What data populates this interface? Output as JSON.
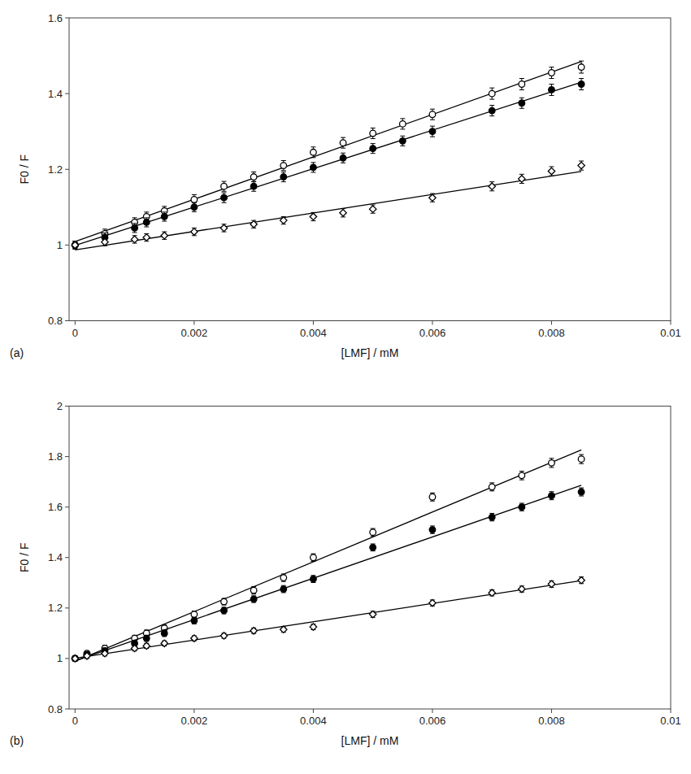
{
  "chart_data": [
    {
      "type": "scatter",
      "x_label": "[LMF] / mM",
      "y_label": "F0 / F",
      "annotations": [
        "(a)"
      ],
      "xlim": [
        -0.0001,
        0.01
      ],
      "xticks": [
        0,
        0.002,
        0.004,
        0.006,
        0.008,
        0.01
      ],
      "ylim": [
        0.8,
        1.6
      ],
      "yticks": [
        0.8,
        1.0,
        1.2,
        1.4,
        1.6
      ],
      "grid": false,
      "series": [
        {
          "type": "line",
          "color": "#000000",
          "x": [
            0,
            0.0085
          ],
          "values": [
            1.00889,
            1.48463
          ]
        },
        {
          "type": "scatter",
          "marker": "open-circle",
          "color": "#000000",
          "x": [
            0,
            0.0005,
            0.001,
            0.0012,
            0.0015,
            0.002,
            0.0025,
            0.003,
            0.0035,
            0.004,
            0.0045,
            0.005,
            0.0055,
            0.006,
            0.007,
            0.0075,
            0.008,
            0.0085
          ],
          "values": [
            1.0,
            1.03,
            1.06,
            1.075,
            1.09,
            1.12,
            1.155,
            1.18,
            1.21,
            1.245,
            1.27,
            1.295,
            1.32,
            1.345,
            1.4,
            1.425,
            1.455,
            1.47
          ],
          "errors": [
            0.01,
            0.012,
            0.012,
            0.012,
            0.012,
            0.013,
            0.013,
            0.013,
            0.013,
            0.014,
            0.014,
            0.014,
            0.014,
            0.014,
            0.015,
            0.015,
            0.015,
            0.016
          ]
        },
        {
          "type": "line",
          "color": "#000000",
          "x": [
            0,
            0.0085
          ],
          "values": [
            0.99883,
            1.42993
          ]
        },
        {
          "type": "scatter",
          "marker": "filled-circle",
          "color": "#000000",
          "x": [
            0,
            0.0005,
            0.001,
            0.0012,
            0.0015,
            0.002,
            0.0025,
            0.003,
            0.0035,
            0.004,
            0.0045,
            0.005,
            0.0055,
            0.006,
            0.007,
            0.0075,
            0.008,
            0.0085
          ],
          "values": [
            1.0,
            1.02,
            1.045,
            1.06,
            1.075,
            1.1,
            1.125,
            1.155,
            1.18,
            1.205,
            1.23,
            1.255,
            1.275,
            1.3,
            1.355,
            1.375,
            1.41,
            1.425
          ],
          "errors": [
            0.01,
            0.012,
            0.012,
            0.012,
            0.012,
            0.012,
            0.013,
            0.013,
            0.013,
            0.013,
            0.013,
            0.013,
            0.013,
            0.014,
            0.014,
            0.014,
            0.015,
            0.015
          ]
        },
        {
          "type": "line",
          "color": "#000000",
          "x": [
            0,
            0.0085
          ],
          "values": [
            0.98701,
            1.19451
          ]
        },
        {
          "type": "scatter",
          "marker": "open-diamond",
          "color": "#000000",
          "x": [
            0,
            0.0005,
            0.001,
            0.0012,
            0.0015,
            0.002,
            0.0025,
            0.003,
            0.0035,
            0.004,
            0.0045,
            0.005,
            0.006,
            0.007,
            0.0075,
            0.008,
            0.0085
          ],
          "values": [
            1.0,
            1.008,
            1.015,
            1.02,
            1.025,
            1.035,
            1.045,
            1.055,
            1.065,
            1.075,
            1.085,
            1.095,
            1.125,
            1.155,
            1.175,
            1.195,
            1.21
          ],
          "errors": [
            0.01,
            0.01,
            0.01,
            0.01,
            0.01,
            0.01,
            0.01,
            0.01,
            0.01,
            0.011,
            0.011,
            0.011,
            0.011,
            0.012,
            0.012,
            0.012,
            0.012
          ]
        }
      ]
    },
    {
      "type": "scatter",
      "x_label": "[LMF] / mM",
      "y_label": "F0 / F",
      "annotations": [
        "(b)"
      ],
      "xlim": [
        -0.0001,
        0.01
      ],
      "xticks": [
        0,
        0.002,
        0.004,
        0.006,
        0.008,
        0.01
      ],
      "ylim": [
        0.8,
        2.0
      ],
      "yticks": [
        0.8,
        1.0,
        1.2,
        1.4,
        1.6,
        1.8,
        2.0
      ],
      "grid": false,
      "series": [
        {
          "type": "line",
          "color": "#000000",
          "x": [
            0,
            0.0085
          ],
          "values": [
            0.98862,
            1.82664
          ]
        },
        {
          "type": "scatter",
          "marker": "open-circle",
          "color": "#000000",
          "x": [
            0,
            0.0002,
            0.0005,
            0.001,
            0.0012,
            0.0015,
            0.002,
            0.0025,
            0.003,
            0.0035,
            0.004,
            0.005,
            0.006,
            0.007,
            0.0075,
            0.008,
            0.0085
          ],
          "values": [
            1.0,
            1.02,
            1.04,
            1.08,
            1.1,
            1.12,
            1.175,
            1.225,
            1.27,
            1.32,
            1.4,
            1.5,
            1.64,
            1.68,
            1.725,
            1.775,
            1.79
          ],
          "errors": [
            0.01,
            0.01,
            0.012,
            0.012,
            0.013,
            0.013,
            0.013,
            0.013,
            0.015,
            0.015,
            0.015,
            0.015,
            0.016,
            0.016,
            0.017,
            0.018,
            0.018
          ]
        },
        {
          "type": "line",
          "color": "#000000",
          "x": [
            0,
            0.0085
          ],
          "values": [
            0.99052,
            1.68633
          ]
        },
        {
          "type": "scatter",
          "marker": "filled-circle",
          "color": "#000000",
          "x": [
            0,
            0.0002,
            0.0005,
            0.001,
            0.0012,
            0.0015,
            0.002,
            0.0025,
            0.003,
            0.0035,
            0.004,
            0.005,
            0.006,
            0.007,
            0.0075,
            0.008,
            0.0085
          ],
          "values": [
            1.0,
            1.015,
            1.03,
            1.06,
            1.08,
            1.1,
            1.15,
            1.19,
            1.235,
            1.275,
            1.315,
            1.44,
            1.51,
            1.56,
            1.6,
            1.645,
            1.66
          ],
          "errors": [
            0.01,
            0.01,
            0.012,
            0.012,
            0.012,
            0.013,
            0.013,
            0.013,
            0.013,
            0.014,
            0.014,
            0.014,
            0.015,
            0.015,
            0.015,
            0.016,
            0.016
          ]
        },
        {
          "type": "line",
          "color": "#000000",
          "x": [
            0,
            0.0085
          ],
          "values": [
            1.0008,
            1.30832
          ]
        },
        {
          "type": "scatter",
          "marker": "open-diamond",
          "color": "#000000",
          "x": [
            0,
            0.0002,
            0.0005,
            0.001,
            0.0012,
            0.0015,
            0.002,
            0.0025,
            0.003,
            0.0035,
            0.004,
            0.005,
            0.006,
            0.007,
            0.0075,
            0.008,
            0.0085
          ],
          "values": [
            1.0,
            1.01,
            1.02,
            1.04,
            1.05,
            1.06,
            1.08,
            1.09,
            1.11,
            1.115,
            1.125,
            1.175,
            1.22,
            1.26,
            1.275,
            1.295,
            1.31
          ],
          "errors": [
            0.01,
            0.01,
            0.01,
            0.01,
            0.01,
            0.01,
            0.01,
            0.01,
            0.011,
            0.011,
            0.011,
            0.012,
            0.012,
            0.012,
            0.012,
            0.013,
            0.013
          ]
        }
      ]
    }
  ]
}
